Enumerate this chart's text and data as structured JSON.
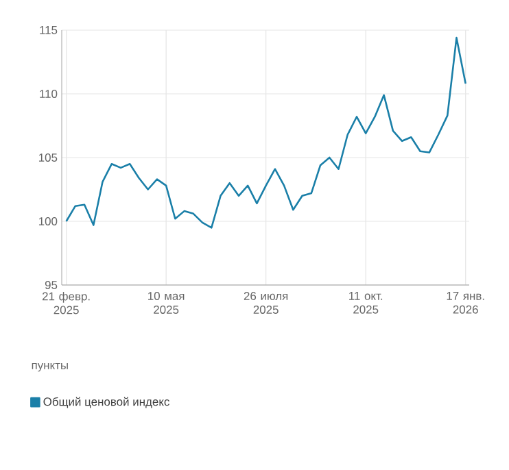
{
  "chart_data": {
    "type": "line",
    "categories": [
      "21 февр. 2025",
      null,
      null,
      null,
      null,
      null,
      null,
      null,
      null,
      null,
      null,
      "10 мая 2025",
      null,
      null,
      null,
      null,
      null,
      null,
      null,
      null,
      null,
      null,
      "26 июля 2025",
      null,
      null,
      null,
      null,
      null,
      null,
      null,
      null,
      null,
      null,
      "11 окт. 2025",
      null,
      null,
      null,
      null,
      null,
      null,
      null,
      null,
      null,
      null,
      "17 янв. 2026"
    ],
    "series": [
      {
        "name": "Общий ценовой индекс",
        "color": "#1a7fa8",
        "values": [
          100.0,
          101.2,
          101.3,
          99.7,
          103.1,
          104.5,
          104.2,
          104.5,
          103.4,
          102.5,
          103.3,
          102.8,
          100.2,
          100.8,
          100.6,
          99.9,
          99.5,
          102.0,
          103.0,
          102.0,
          102.8,
          101.4,
          102.8,
          104.1,
          102.8,
          100.9,
          102.0,
          102.2,
          104.4,
          105.0,
          104.1,
          106.8,
          108.2,
          106.9,
          108.2,
          109.9,
          107.1,
          106.3,
          106.6,
          105.5,
          105.4,
          106.8,
          108.3,
          114.4,
          110.8
        ]
      }
    ],
    "ylabel": "пункты",
    "ylim": [
      95,
      115
    ],
    "yticks": [
      95,
      100,
      105,
      110,
      115
    ],
    "grid": true,
    "legend": "bottom",
    "marker": "none",
    "line_style": "solid"
  }
}
